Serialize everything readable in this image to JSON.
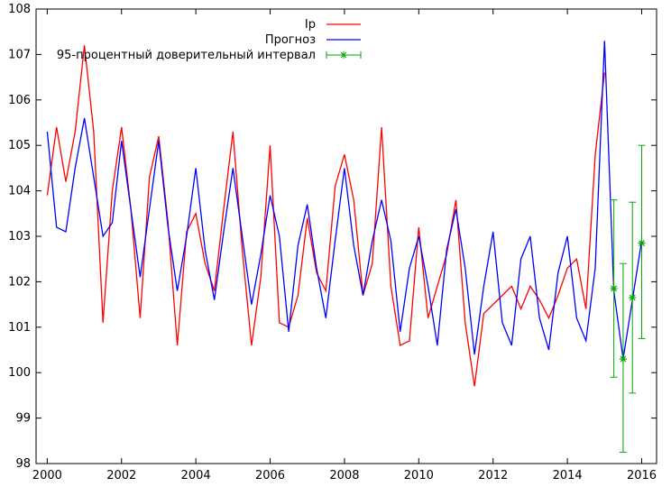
{
  "chart_data": {
    "type": "line",
    "title": "",
    "xlabel": "",
    "ylabel": "",
    "xlim": [
      1999.7,
      2016.4
    ],
    "ylim": [
      98,
      108
    ],
    "xticks": [
      2000,
      2002,
      2004,
      2006,
      2008,
      2010,
      2012,
      2014,
      2016
    ],
    "yticks": [
      98,
      99,
      100,
      101,
      102,
      103,
      104,
      105,
      106,
      107,
      108
    ],
    "grid": false,
    "legend_position": "top-right",
    "series": [
      {
        "name": "Ip",
        "color": "#ff0000",
        "points": [
          [
            2000.0,
            103.9
          ],
          [
            2000.25,
            105.4
          ],
          [
            2000.5,
            104.2
          ],
          [
            2000.75,
            105.3
          ],
          [
            2001.0,
            107.2
          ],
          [
            2001.25,
            105.3
          ],
          [
            2001.5,
            101.1
          ],
          [
            2001.75,
            104.0
          ],
          [
            2002.0,
            105.4
          ],
          [
            2002.25,
            103.6
          ],
          [
            2002.5,
            101.2
          ],
          [
            2002.75,
            104.3
          ],
          [
            2003.0,
            105.2
          ],
          [
            2003.25,
            103.3
          ],
          [
            2003.5,
            100.6
          ],
          [
            2003.75,
            103.1
          ],
          [
            2004.0,
            103.5
          ],
          [
            2004.25,
            102.4
          ],
          [
            2004.5,
            101.8
          ],
          [
            2004.75,
            103.6
          ],
          [
            2005.0,
            105.3
          ],
          [
            2005.25,
            102.7
          ],
          [
            2005.5,
            100.6
          ],
          [
            2005.75,
            102.1
          ],
          [
            2006.0,
            105.0
          ],
          [
            2006.25,
            101.1
          ],
          [
            2006.5,
            101.0
          ],
          [
            2006.75,
            101.7
          ],
          [
            2007.0,
            103.4
          ],
          [
            2007.25,
            102.2
          ],
          [
            2007.5,
            101.8
          ],
          [
            2007.75,
            104.1
          ],
          [
            2008.0,
            104.8
          ],
          [
            2008.25,
            103.8
          ],
          [
            2008.5,
            101.7
          ],
          [
            2008.75,
            102.4
          ],
          [
            2009.0,
            105.4
          ],
          [
            2009.25,
            101.9
          ],
          [
            2009.5,
            100.6
          ],
          [
            2009.75,
            100.7
          ],
          [
            2010.0,
            103.2
          ],
          [
            2010.25,
            101.2
          ],
          [
            2010.5,
            101.9
          ],
          [
            2010.75,
            102.6
          ],
          [
            2011.0,
            103.8
          ],
          [
            2011.25,
            101.1
          ],
          [
            2011.5,
            99.7
          ],
          [
            2011.75,
            101.3
          ],
          [
            2012.0,
            101.5
          ],
          [
            2012.25,
            101.7
          ],
          [
            2012.5,
            101.9
          ],
          [
            2012.75,
            101.4
          ],
          [
            2013.0,
            101.9
          ],
          [
            2013.25,
            101.6
          ],
          [
            2013.5,
            101.2
          ],
          [
            2013.75,
            101.7
          ],
          [
            2014.0,
            102.3
          ],
          [
            2014.25,
            102.5
          ],
          [
            2014.5,
            101.4
          ],
          [
            2014.75,
            104.8
          ],
          [
            2015.0,
            106.6
          ]
        ]
      },
      {
        "name": "Прогноз",
        "color": "#0000ff",
        "points": [
          [
            2000.0,
            105.3
          ],
          [
            2000.25,
            103.2
          ],
          [
            2000.5,
            103.1
          ],
          [
            2000.75,
            104.5
          ],
          [
            2001.0,
            105.6
          ],
          [
            2001.25,
            104.3
          ],
          [
            2001.5,
            103.0
          ],
          [
            2001.75,
            103.3
          ],
          [
            2002.0,
            105.1
          ],
          [
            2002.25,
            103.6
          ],
          [
            2002.5,
            102.1
          ],
          [
            2002.75,
            103.6
          ],
          [
            2003.0,
            105.1
          ],
          [
            2003.25,
            103.2
          ],
          [
            2003.5,
            101.8
          ],
          [
            2003.75,
            103.0
          ],
          [
            2004.0,
            104.5
          ],
          [
            2004.25,
            102.7
          ],
          [
            2004.5,
            101.6
          ],
          [
            2004.75,
            103.1
          ],
          [
            2005.0,
            104.5
          ],
          [
            2005.25,
            103.0
          ],
          [
            2005.5,
            101.5
          ],
          [
            2005.75,
            102.6
          ],
          [
            2006.0,
            103.9
          ],
          [
            2006.25,
            103.0
          ],
          [
            2006.5,
            100.9
          ],
          [
            2006.75,
            102.8
          ],
          [
            2007.0,
            103.7
          ],
          [
            2007.25,
            102.3
          ],
          [
            2007.5,
            101.2
          ],
          [
            2007.75,
            102.9
          ],
          [
            2008.0,
            104.5
          ],
          [
            2008.25,
            102.8
          ],
          [
            2008.5,
            101.7
          ],
          [
            2008.75,
            102.9
          ],
          [
            2009.0,
            103.8
          ],
          [
            2009.25,
            102.9
          ],
          [
            2009.5,
            100.9
          ],
          [
            2009.75,
            102.3
          ],
          [
            2010.0,
            103.0
          ],
          [
            2010.25,
            101.9
          ],
          [
            2010.5,
            100.6
          ],
          [
            2010.75,
            102.7
          ],
          [
            2011.0,
            103.6
          ],
          [
            2011.25,
            102.3
          ],
          [
            2011.5,
            100.4
          ],
          [
            2011.75,
            101.9
          ],
          [
            2012.0,
            103.1
          ],
          [
            2012.25,
            101.1
          ],
          [
            2012.5,
            100.6
          ],
          [
            2012.75,
            102.5
          ],
          [
            2013.0,
            103.0
          ],
          [
            2013.25,
            101.2
          ],
          [
            2013.5,
            100.5
          ],
          [
            2013.75,
            102.2
          ],
          [
            2014.0,
            103.0
          ],
          [
            2014.25,
            101.2
          ],
          [
            2014.5,
            100.7
          ],
          [
            2014.75,
            102.3
          ],
          [
            2015.0,
            107.3
          ],
          [
            2015.25,
            101.8
          ],
          [
            2015.5,
            100.3
          ],
          [
            2015.75,
            101.6
          ],
          [
            2016.0,
            102.9
          ]
        ]
      },
      {
        "name": "95-процентный доверительный интервал",
        "color": "#00aa00",
        "kind": "errorbar",
        "points": [
          {
            "x": 2015.25,
            "y": 101.85,
            "low": 99.9,
            "high": 103.8
          },
          {
            "x": 2015.5,
            "y": 100.3,
            "low": 98.25,
            "high": 102.4
          },
          {
            "x": 2015.75,
            "y": 101.65,
            "low": 99.55,
            "high": 103.75
          },
          {
            "x": 2016.0,
            "y": 102.85,
            "low": 100.75,
            "high": 105.0
          }
        ]
      }
    ]
  }
}
